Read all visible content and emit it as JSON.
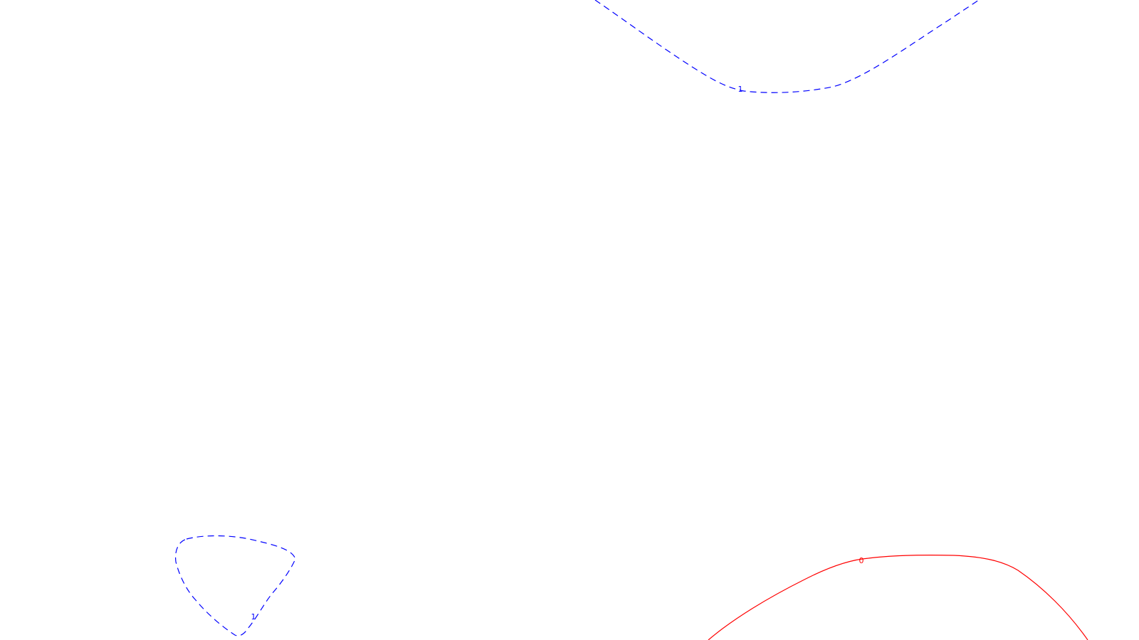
{
  "chart_data": {
    "type": "contour",
    "title": "",
    "xlabel": "",
    "ylabel": "",
    "grid": false,
    "legend": "none",
    "levels": [
      {
        "level": "1",
        "color": "#0000ff",
        "style": "dashed",
        "label": "1"
      },
      {
        "level": "0",
        "color": "#ff0000",
        "style": "solid",
        "label": "0"
      }
    ]
  }
}
